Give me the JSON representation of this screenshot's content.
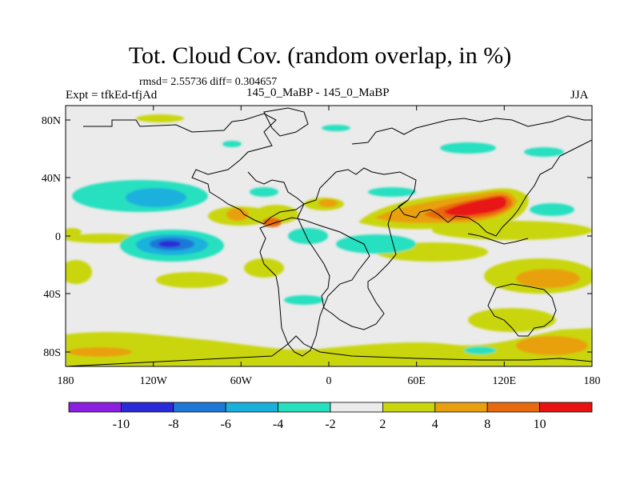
{
  "title": "Tot. Cloud Cov. (random overlap, in %)",
  "stats": "rmsd= 2.55736 diff= 0.304657",
  "experiment": "Expt = tfkEd-tfjAd",
  "comparison": "145_0_MaBP - 145_0_MaBP",
  "season": "JJA",
  "x_ticks": [
    "180",
    "120W",
    "60W",
    "0",
    "60E",
    "120E",
    "180"
  ],
  "y_ticks": [
    "80N",
    "40N",
    "0",
    "40S",
    "80S"
  ],
  "colorbar": {
    "labels": [
      "-10",
      "-8",
      "-6",
      "-4",
      "-2",
      "2",
      "4",
      "8",
      "10"
    ],
    "colors": [
      "#8a1fe0",
      "#2a2ad8",
      "#1f78d6",
      "#1ab0dc",
      "#26e0c0",
      "#ebebeb",
      "#c9d60e",
      "#e8a010",
      "#e86a10",
      "#e81212"
    ]
  },
  "colors": {
    "background": "#ebebeb",
    "coastline": "#000000"
  }
}
